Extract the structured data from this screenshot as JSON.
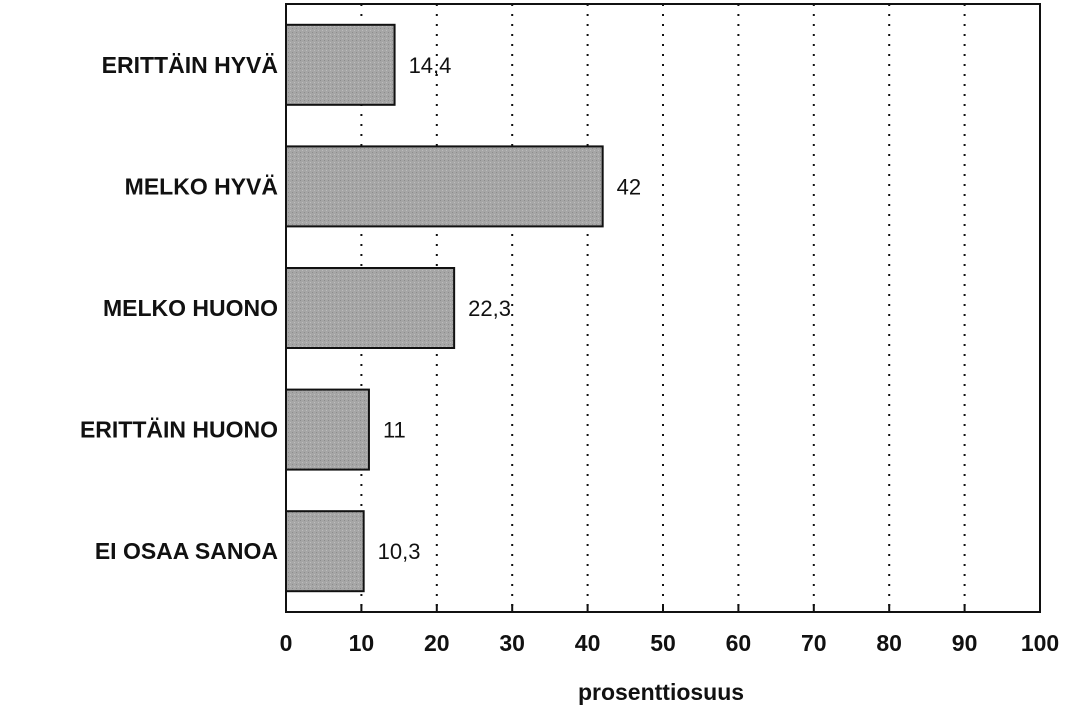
{
  "chart_data": {
    "type": "bar",
    "orientation": "horizontal",
    "title": "",
    "categories": [
      "ERITTÄIN HYVÄ",
      "MELKO HYVÄ",
      "MELKO HUONO",
      "ERITTÄIN HUONO",
      "EI OSAA SANOA"
    ],
    "values": [
      14.4,
      42,
      22.3,
      11,
      10.3
    ],
    "value_labels": [
      "14,4",
      "42",
      "22,3",
      "11",
      "10,3"
    ],
    "xlabel": "prosenttiosuus",
    "ylabel": "",
    "xlim": [
      0,
      100
    ],
    "x_ticks": [
      0,
      10,
      20,
      30,
      40,
      50,
      60,
      70,
      80,
      90,
      100
    ],
    "x_tick_labels": [
      "0",
      "10",
      "20",
      "30",
      "40",
      "50",
      "60",
      "70",
      "80",
      "90",
      "100"
    ],
    "grid": "vertical-dotted",
    "legend": "none",
    "colors": {
      "bar_fill": "#a6a6a6",
      "bar_stroke": "#111111",
      "axis": "#111111",
      "grid": "#111111"
    }
  }
}
